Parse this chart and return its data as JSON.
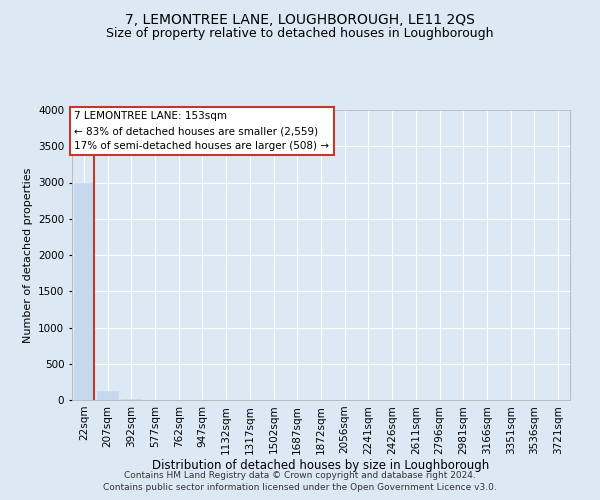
{
  "title": "7, LEMONTREE LANE, LOUGHBOROUGH, LE11 2QS",
  "subtitle": "Size of property relative to detached houses in Loughborough",
  "xlabel": "Distribution of detached houses by size in Loughborough",
  "ylabel": "Number of detached properties",
  "footer_line1": "Contains HM Land Registry data © Crown copyright and database right 2024.",
  "footer_line2": "Contains public sector information licensed under the Open Government Licence v3.0.",
  "annotation_line1": "7 LEMONTREE LANE: 153sqm",
  "annotation_line2": "← 83% of detached houses are smaller (2,559)",
  "annotation_line3": "17% of semi-detached houses are larger (508) →",
  "categories": [
    "22sqm",
    "207sqm",
    "392sqm",
    "577sqm",
    "762sqm",
    "947sqm",
    "1132sqm",
    "1317sqm",
    "1502sqm",
    "1687sqm",
    "1872sqm",
    "2056sqm",
    "2241sqm",
    "2426sqm",
    "2611sqm",
    "2796sqm",
    "2981sqm",
    "3166sqm",
    "3351sqm",
    "3536sqm",
    "3721sqm"
  ],
  "values": [
    3000,
    130,
    8,
    3,
    2,
    1,
    1,
    1,
    0,
    0,
    0,
    0,
    0,
    0,
    0,
    0,
    0,
    0,
    0,
    0,
    0
  ],
  "bar_color": "#c6d9ec",
  "marker_line_color": "#c0392b",
  "ylim": [
    0,
    4000
  ],
  "yticks": [
    0,
    500,
    1000,
    1500,
    2000,
    2500,
    3000,
    3500,
    4000
  ],
  "background_color": "#dce9f5",
  "plot_bg_color": "#dce9f5",
  "grid_color": "#ffffff",
  "title_fontsize": 10,
  "subtitle_fontsize": 9,
  "xlabel_fontsize": 8.5,
  "ylabel_fontsize": 8,
  "tick_fontsize": 7.5,
  "annotation_fontsize": 7.5,
  "footer_fontsize": 6.5
}
